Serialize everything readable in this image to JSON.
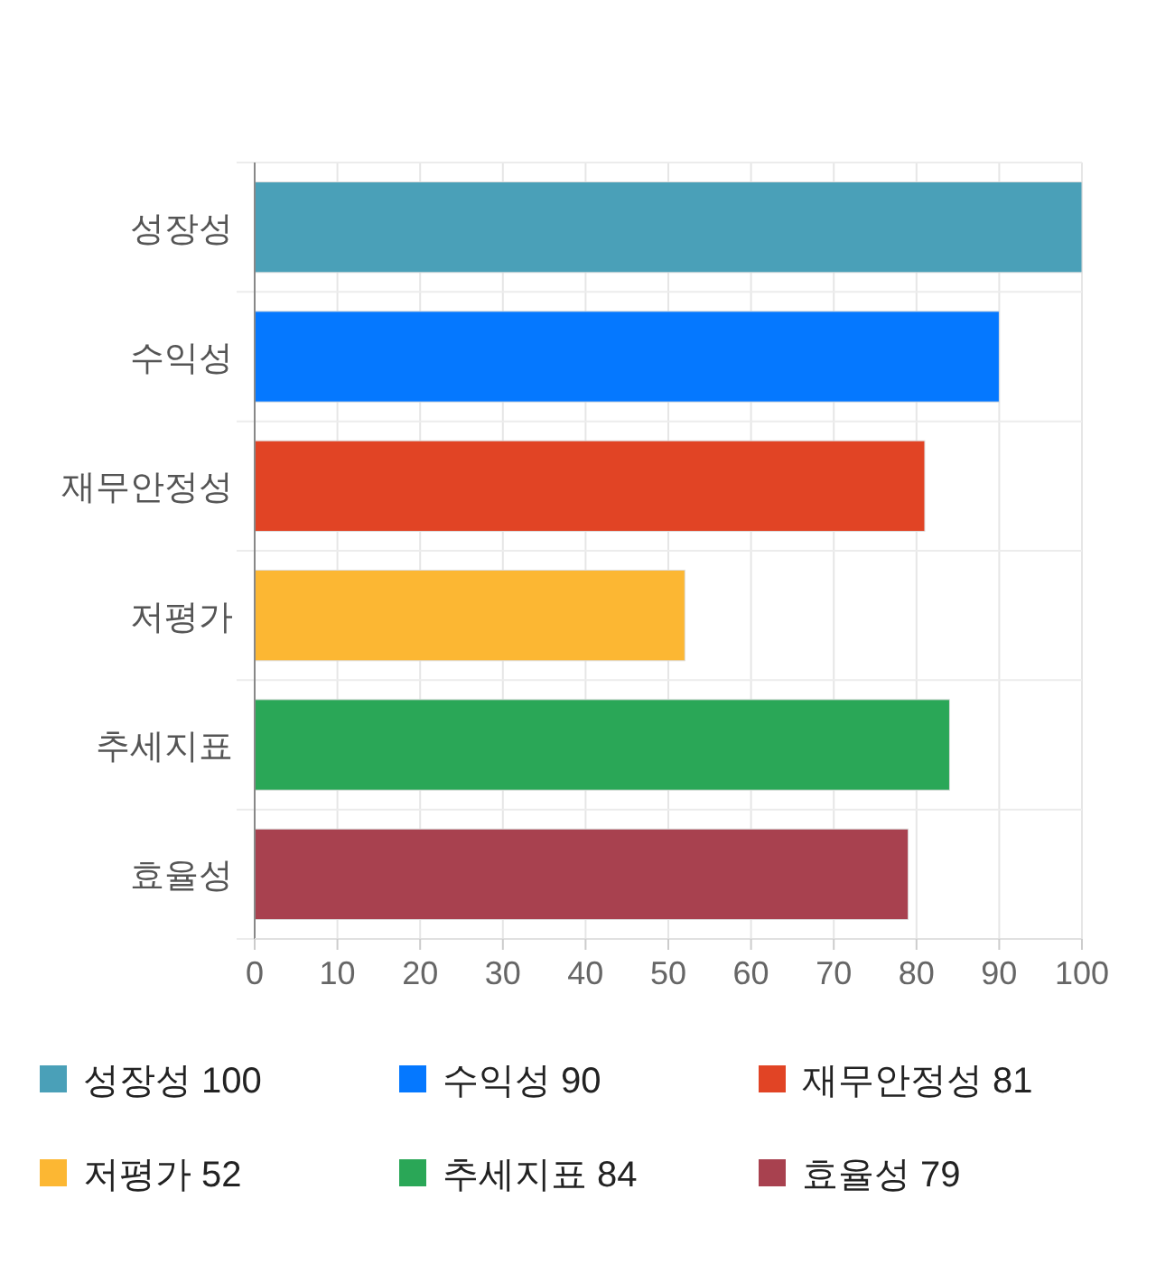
{
  "chart_data": {
    "type": "bar",
    "orientation": "horizontal",
    "categories": [
      "성장성",
      "수익성",
      "재무안정성",
      "저평가",
      "추세지표",
      "효율성"
    ],
    "series": [
      {
        "name": "성장성 100",
        "color": "#4aa0b8",
        "values": [
          100,
          null,
          null,
          null,
          null,
          null
        ]
      },
      {
        "name": "수익성 90",
        "color": "#0578ff",
        "values": [
          null,
          90,
          null,
          null,
          null,
          null
        ]
      },
      {
        "name": "재무안정성 81",
        "color": "#e14425",
        "values": [
          null,
          null,
          81,
          null,
          null,
          null
        ]
      },
      {
        "name": "저평가 52",
        "color": "#fcb733",
        "values": [
          null,
          null,
          null,
          52,
          null,
          null
        ]
      },
      {
        "name": "추세지표 84",
        "color": "#2aa757",
        "values": [
          null,
          null,
          null,
          null,
          84,
          null
        ]
      },
      {
        "name": "효율성 79",
        "color": "#a8414f",
        "values": [
          null,
          null,
          null,
          null,
          null,
          79
        ]
      }
    ],
    "xlim": [
      0,
      100
    ],
    "xticks": [
      0,
      10,
      20,
      30,
      40,
      50,
      60,
      70,
      80,
      90,
      100
    ],
    "grid": true,
    "legend": "bottom"
  }
}
